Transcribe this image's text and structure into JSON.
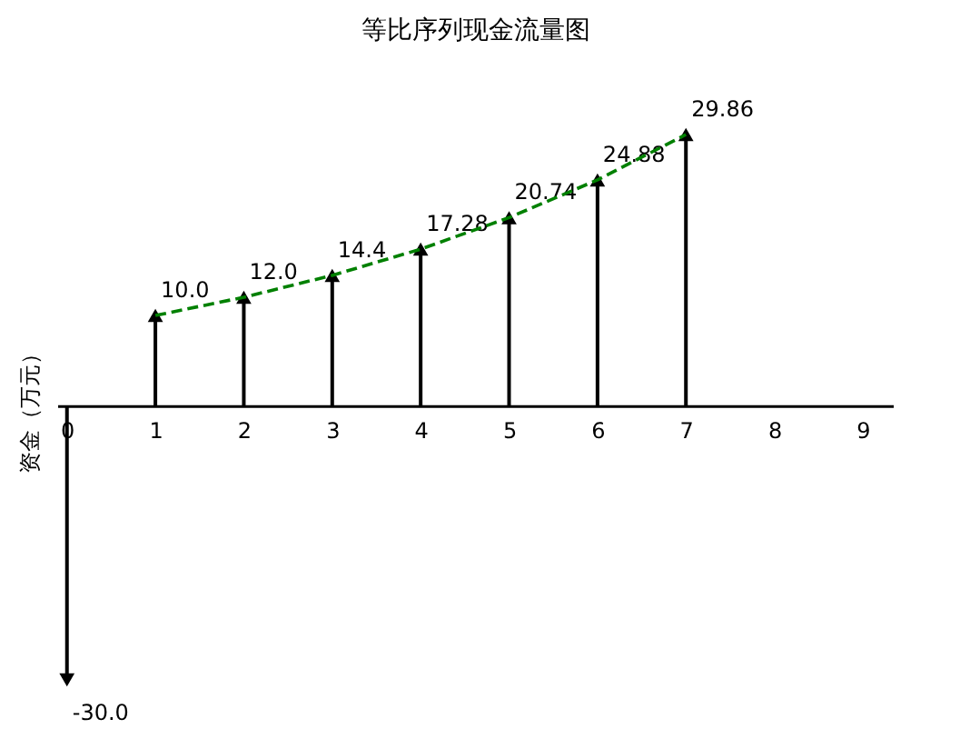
{
  "chart_data": {
    "type": "lollipop",
    "title": "等比序列现金流量图",
    "ylabel": "资金（万元）",
    "x": [
      0,
      1,
      2,
      3,
      4,
      5,
      6,
      7
    ],
    "series": [
      {
        "color": "#000000",
        "marker": "triangle",
        "values": [
          -30,
          10,
          12,
          14.4,
          17.28,
          20.74,
          24.88,
          29.86
        ],
        "value_labels": [
          "-30.0",
          "10.0",
          "12.0",
          "14.4",
          "17.28",
          "20.74",
          "24.88",
          "29.86"
        ]
      },
      {
        "type": "line",
        "color": "#008000",
        "line_style": "dashed",
        "marker": "none",
        "x": [
          1,
          2,
          3,
          4,
          5,
          6,
          7
        ],
        "values": [
          10,
          12,
          14.4,
          17.28,
          20.74,
          24.88,
          29.86
        ]
      }
    ],
    "xlim": [
      -0.1,
      9.35
    ],
    "xticks": [
      0,
      1,
      2,
      3,
      4,
      5,
      6,
      7,
      8,
      9
    ],
    "tick_labels": "x",
    "grid": false
  }
}
